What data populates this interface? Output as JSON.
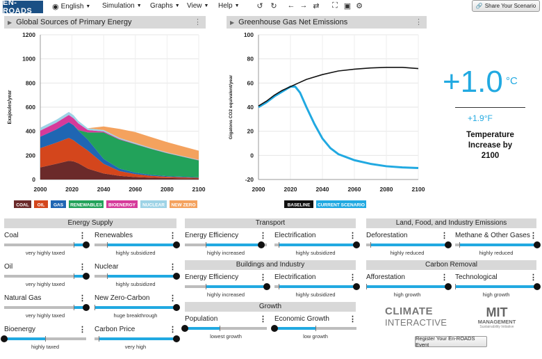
{
  "app": {
    "logo": "EN-ROADS"
  },
  "menu": {
    "language": "English",
    "simulation": "Simulation",
    "graphs": "Graphs",
    "view": "View",
    "help": "Help"
  },
  "toolbar_icons": [
    "reset-icon",
    "refresh-icon",
    "undo-icon",
    "redo-icon",
    "compare-icon",
    "fullscreen-icon",
    "fullscreen-exit-icon",
    "settings-icon"
  ],
  "share": {
    "label": "Share Your Scenario"
  },
  "energy_panel": {
    "title": "Global Sources of Primary Energy"
  },
  "ghg_panel": {
    "title": "Greenhouse Gas Net Emissions"
  },
  "chart_data": [
    {
      "type": "area",
      "title": "Global Sources of Primary Energy",
      "ylabel": "Exajoules/year",
      "xlabel": "",
      "ylim": [
        0,
        1200
      ],
      "yticks": [
        "0",
        "200",
        "400",
        "600",
        "800",
        "1000",
        "1200"
      ],
      "xticks": [
        "2000",
        "2020",
        "2040",
        "2060",
        "2080",
        "2100"
      ],
      "x": [
        2000,
        2010,
        2018,
        2021,
        2024,
        2030,
        2040,
        2050,
        2060,
        2070,
        2080,
        2090,
        2100
      ],
      "series": [
        {
          "name": "Coal",
          "color": "#6b2a2a",
          "values": [
            100,
            130,
            155,
            150,
            135,
            90,
            50,
            30,
            20,
            15,
            12,
            10,
            8
          ]
        },
        {
          "name": "Oil",
          "color": "#d4461c",
          "values": [
            160,
            175,
            190,
            175,
            160,
            150,
            80,
            40,
            25,
            15,
            10,
            8,
            6
          ]
        },
        {
          "name": "Gas",
          "color": "#1f66b3",
          "values": [
            95,
            110,
            130,
            125,
            110,
            90,
            40,
            20,
            12,
            8,
            6,
            5,
            4
          ]
        },
        {
          "name": "Renewables",
          "color": "#22a25a",
          "values": [
            0,
            0,
            0,
            0,
            5,
            60,
            220,
            240,
            235,
            215,
            190,
            165,
            140
          ]
        },
        {
          "name": "Bioenergy",
          "color": "#d63a9a",
          "values": [
            50,
            55,
            60,
            58,
            55,
            20,
            8,
            5,
            3,
            2,
            2,
            2,
            2
          ]
        },
        {
          "name": "Nuclear",
          "color": "#9ed3e6",
          "values": [
            25,
            25,
            25,
            25,
            22,
            15,
            12,
            10,
            8,
            6,
            5,
            4,
            4
          ]
        },
        {
          "name": "New Zero",
          "color": "#f4a25e",
          "values": [
            0,
            0,
            0,
            0,
            0,
            0,
            30,
            75,
            90,
            90,
            85,
            80,
            75
          ]
        }
      ],
      "legend": [
        "COAL",
        "OIL",
        "GAS",
        "RENEWABLES",
        "BIOENERGY",
        "NUCLEAR",
        "NEW ZERO"
      ]
    },
    {
      "type": "line",
      "title": "Greenhouse Gas Net Emissions",
      "ylabel": "Gigatons CO2 equivalent/year",
      "xlabel": "",
      "ylim": [
        -20,
        100
      ],
      "yticks": [
        "-20",
        "0",
        "20",
        "40",
        "60",
        "80",
        "100"
      ],
      "xticks": [
        "2000",
        "2020",
        "2040",
        "2060",
        "2080",
        "2100"
      ],
      "series": [
        {
          "name": "Baseline",
          "color": "#111111",
          "x": [
            2000,
            2005,
            2010,
            2015,
            2020,
            2025,
            2030,
            2040,
            2050,
            2060,
            2070,
            2080,
            2090,
            2100
          ],
          "values": [
            41,
            45,
            50,
            54,
            57,
            60,
            63,
            67,
            70,
            71.5,
            72.5,
            73,
            73,
            72
          ]
        },
        {
          "name": "Current Scenario",
          "color": "#21a9e1",
          "x": [
            2000,
            2005,
            2010,
            2015,
            2020,
            2023,
            2026,
            2030,
            2035,
            2040,
            2045,
            2050,
            2060,
            2070,
            2080,
            2090,
            2100
          ],
          "values": [
            40,
            44,
            49,
            53,
            57,
            57,
            52,
            40,
            26,
            14,
            6,
            1,
            -4,
            -7,
            -9,
            -10,
            -10.5
          ]
        }
      ],
      "legend": [
        "BASELINE",
        "CURRENT SCENARIO"
      ]
    }
  ],
  "temperature": {
    "value": "+1.0",
    "unit": "°C",
    "fahrenheit": "+1.9°F",
    "label_line1": "Temperature",
    "label_line2": "Increase by",
    "label_line3": "2100"
  },
  "sections": {
    "energy_supply": "Energy Supply",
    "transport": "Transport",
    "buildings": "Buildings and Industry",
    "growth": "Growth",
    "land": "Land, Food, and Industry Emissions",
    "carbon_removal": "Carbon Removal"
  },
  "sliders": {
    "coal": {
      "label": "Coal",
      "value": 1.0,
      "default": 0.85,
      "desc": "very highly taxed"
    },
    "renewables": {
      "label": "Renewables",
      "value": 1.0,
      "default": 0.15,
      "desc": "highly subsidized"
    },
    "oil": {
      "label": "Oil",
      "value": 1.0,
      "default": 0.85,
      "desc": "very highly taxed"
    },
    "nuclear": {
      "label": "Nuclear",
      "value": 1.0,
      "default": 0.15,
      "desc": "highly subsidized"
    },
    "natural_gas": {
      "label": "Natural Gas",
      "value": 1.0,
      "default": 0.85,
      "desc": "very highly taxed"
    },
    "new_zero_carbon": {
      "label": "New Zero-Carbon",
      "value": 1.0,
      "default": 0.0,
      "desc": "huge breakthrough"
    },
    "bioenergy": {
      "label": "Bioenergy",
      "value": 0.0,
      "default": 0.5,
      "desc": "highly taxed"
    },
    "carbon_price": {
      "label": "Carbon Price",
      "value": 1.0,
      "default": 0.05,
      "desc": "very high"
    },
    "transport_efficiency": {
      "label": "Energy Efficiency",
      "value": 0.93,
      "default": 0.25,
      "desc": "highly increased"
    },
    "transport_electrification": {
      "label": "Electrification",
      "value": 1.0,
      "default": 0.05,
      "desc": "highly subsidized"
    },
    "buildings_efficiency": {
      "label": "Energy Efficiency",
      "value": 1.0,
      "default": 0.25,
      "desc": "highly increased"
    },
    "buildings_electrification": {
      "label": "Electrification",
      "value": 1.0,
      "default": 0.05,
      "desc": "highly subsidized"
    },
    "population": {
      "label": "Population",
      "value": 0.0,
      "default": 0.42,
      "desc": "lowest growth"
    },
    "economic_growth": {
      "label": "Economic Growth",
      "value": 0.0,
      "default": 0.5,
      "desc": "low growth"
    },
    "deforestation": {
      "label": "Deforestation",
      "value": 1.0,
      "default": 0.05,
      "desc": "highly reduced"
    },
    "methane": {
      "label": "Methane & Other Gases",
      "value": 1.0,
      "default": 0.05,
      "desc": "highly reduced"
    },
    "afforestation": {
      "label": "Afforestation",
      "value": 1.0,
      "default": 0.0,
      "desc": "high growth"
    },
    "technological": {
      "label": "Technological",
      "value": 1.0,
      "default": 0.0,
      "desc": "high growth"
    }
  },
  "partners": {
    "climate_line1": "CLIMATE",
    "climate_line2": "INTERACTIVE",
    "mit_line1": "MIT",
    "mit_line2": "MANAGEMENT",
    "mit_line3": "Sustainability Initiative"
  },
  "register": {
    "label": "Register Your En-ROADS Event"
  },
  "colors": {
    "accent": "#21a9e1",
    "panel_header": "#d8d8d8",
    "logo_bg": "#1a4f84"
  }
}
